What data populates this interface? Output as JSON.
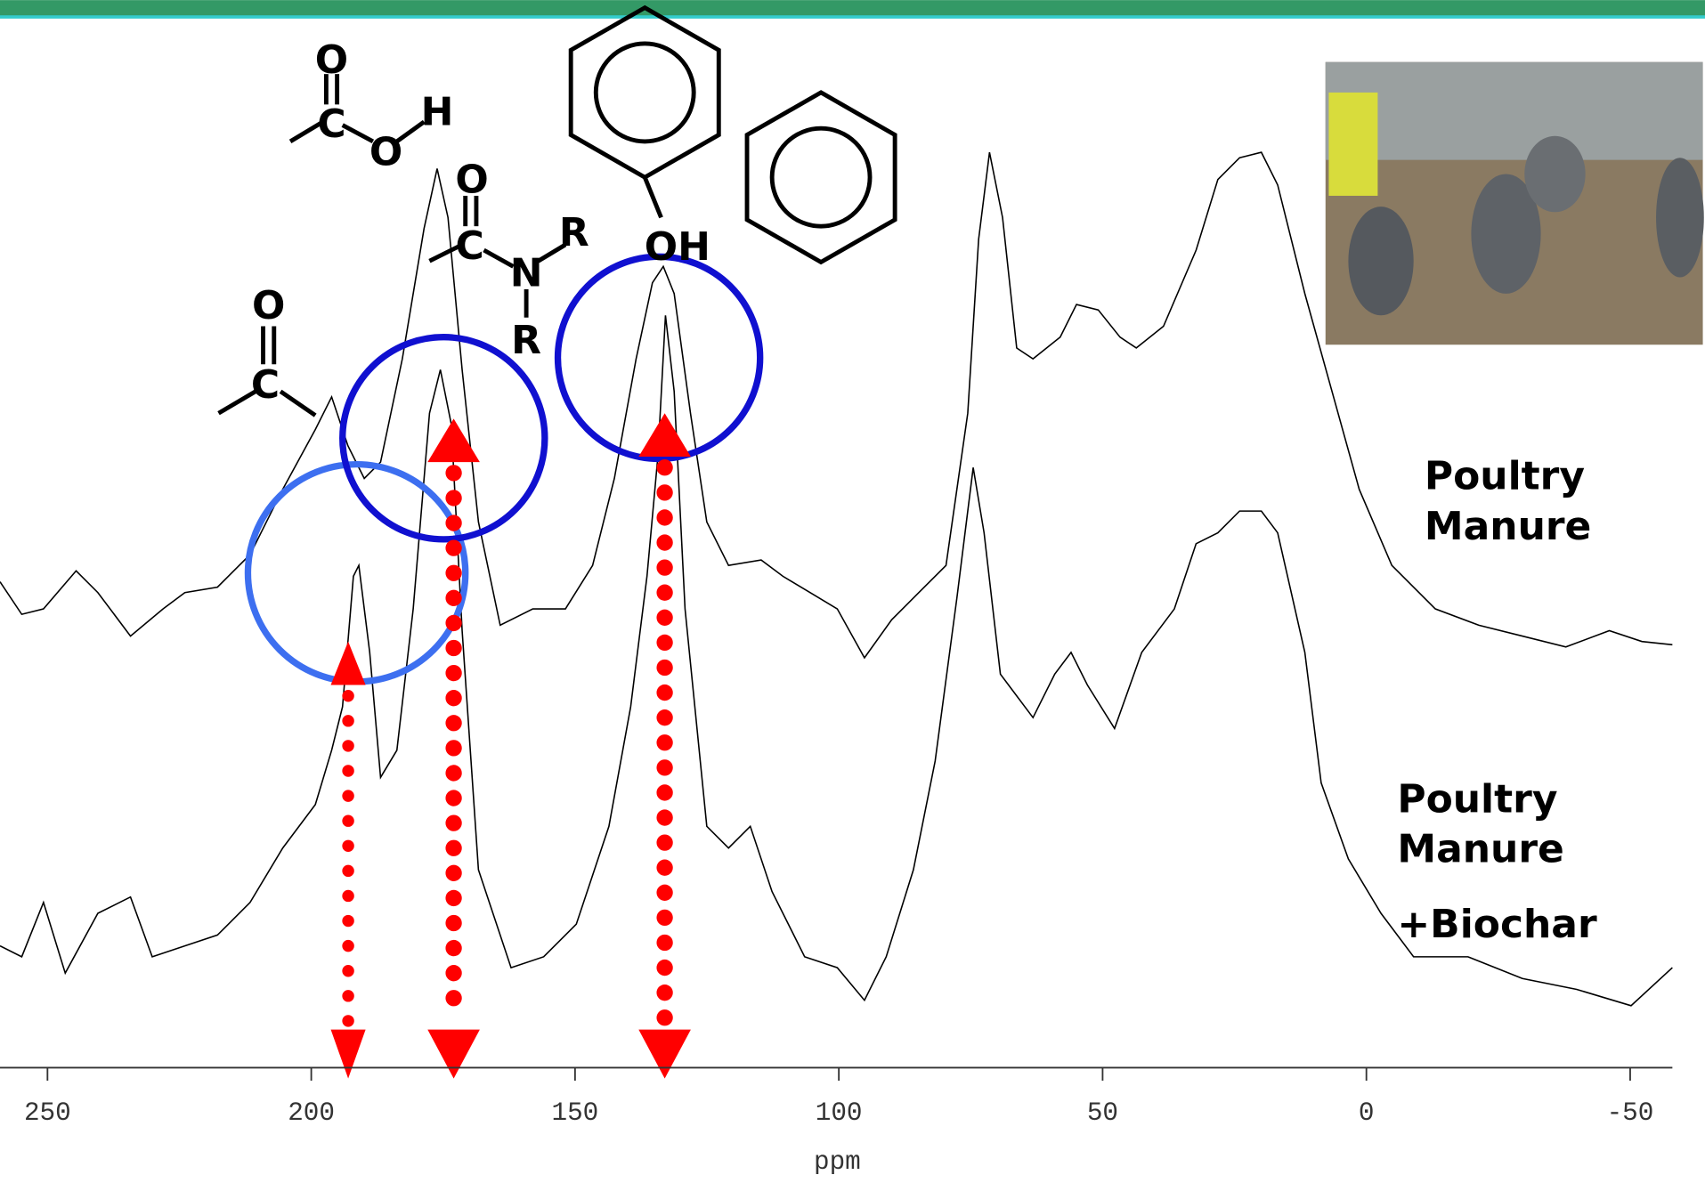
{
  "chart_data": {
    "type": "line",
    "x_label": "ppm",
    "xlim": [
      259,
      -58
    ],
    "xticks": [
      250,
      200,
      150,
      100,
      50,
      0,
      -50
    ],
    "peak_markers_ppm": [
      193,
      173,
      133
    ],
    "trace_labels": [
      [
        "Poultry",
        "Manure"
      ],
      [
        "Poultry",
        "Manure",
        "+Biochar"
      ]
    ],
    "annotations": [
      "O",
      "C",
      "O",
      "H",
      "O",
      "C",
      "N",
      "R",
      "R",
      "O",
      "C",
      "OH"
    ]
  }
}
